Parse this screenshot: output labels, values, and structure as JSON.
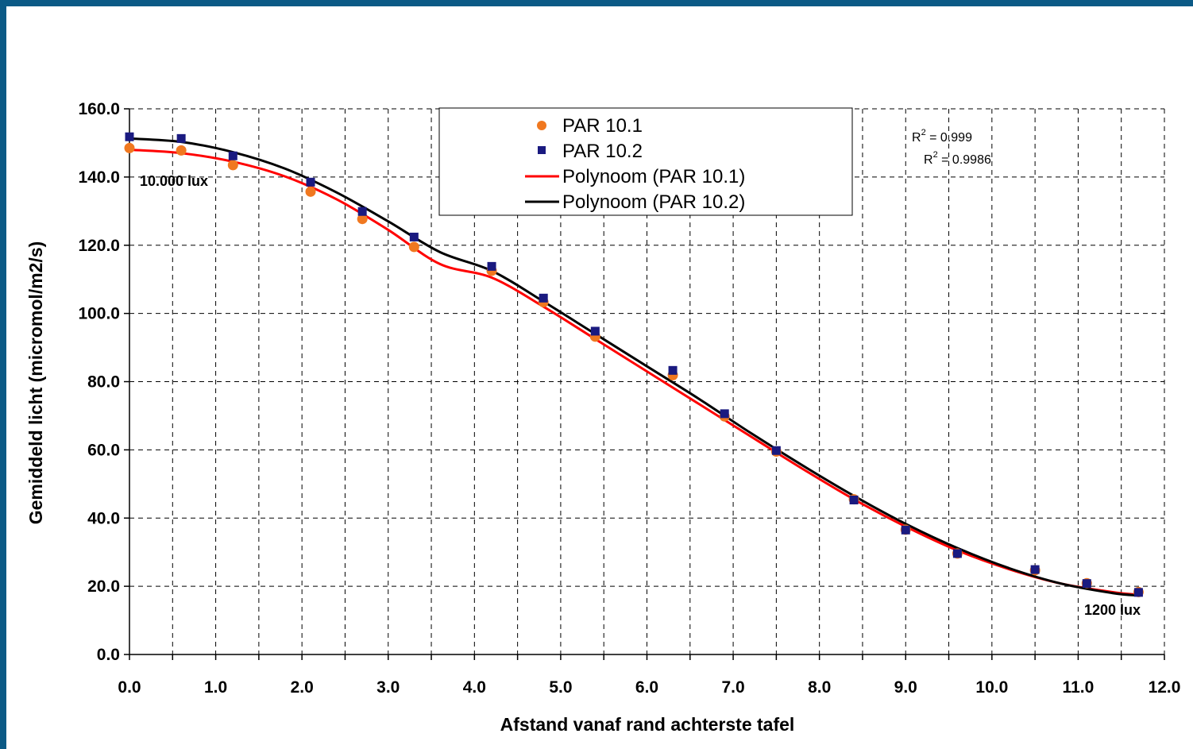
{
  "chart_data": {
    "type": "scatter",
    "title": "",
    "xlabel": "Afstand vanaf rand achterste tafel",
    "ylabel": "Gemiddeld licht (micromol/m2/s)",
    "xlim": [
      0,
      12
    ],
    "ylim": [
      0,
      160
    ],
    "x_tick_labels": [
      "0.0",
      "1.0",
      "2.0",
      "3.0",
      "4.0",
      "5.0",
      "6.0",
      "7.0",
      "8.0",
      "9.0",
      "10.0",
      "11.0",
      "12.0"
    ],
    "y_tick_labels": [
      "0.0",
      "20.0",
      "40.0",
      "60.0",
      "80.0",
      "100.0",
      "120.0",
      "140.0",
      "160.0"
    ],
    "grid": true,
    "legend_position": "top-center",
    "series": [
      {
        "name": "PAR 10.1",
        "marker": "circle",
        "color": "#f07820",
        "x": [
          0.0,
          0.6,
          1.2,
          2.1,
          2.7,
          3.3,
          4.2,
          4.8,
          5.4,
          6.3,
          6.9,
          7.5,
          8.4,
          9.0,
          9.6,
          10.5,
          11.1,
          11.7
        ],
        "y": [
          148.5,
          147.8,
          143.5,
          135.7,
          127.7,
          119.5,
          112.5,
          103.3,
          93.2,
          81.9,
          69.8,
          59.5,
          45.5,
          36.6,
          29.6,
          24.7,
          20.9,
          18.3
        ]
      },
      {
        "name": "PAR 10.2",
        "marker": "square",
        "color": "#1a1a80",
        "x": [
          0.0,
          0.6,
          1.2,
          2.1,
          2.7,
          3.3,
          4.2,
          4.8,
          5.4,
          6.3,
          6.9,
          7.5,
          8.4,
          9.0,
          9.6,
          10.5,
          11.1,
          11.7
        ],
        "y": [
          151.8,
          151.3,
          146.2,
          138.5,
          129.9,
          122.4,
          113.8,
          104.5,
          94.8,
          83.3,
          70.6,
          59.8,
          45.3,
          36.5,
          29.6,
          24.9,
          20.8,
          18.2
        ]
      }
    ],
    "trendlines": [
      {
        "name": "Polynoom (PAR 10.1)",
        "color": "#ff0000",
        "x": [
          0.0,
          0.6,
          1.2,
          1.8,
          2.4,
          3.0,
          3.6,
          4.2,
          4.8,
          5.4,
          6.0,
          6.6,
          7.2,
          7.8,
          8.4,
          9.0,
          9.6,
          10.2,
          10.8,
          11.4,
          11.7
        ],
        "y": [
          148.0,
          147.0,
          144.5,
          140.2,
          133.5,
          124.5,
          114.5,
          110.5,
          102.0,
          92.5,
          83.0,
          73.5,
          64.0,
          54.5,
          45.5,
          37.5,
          30.5,
          25.0,
          20.8,
          18.3,
          17.5
        ]
      },
      {
        "name": "Polynoom (PAR 10.2)",
        "color": "#000000",
        "x": [
          0.0,
          0.6,
          1.2,
          1.8,
          2.4,
          3.0,
          3.6,
          4.2,
          4.8,
          5.4,
          6.0,
          6.6,
          7.2,
          7.8,
          8.4,
          9.0,
          9.6,
          10.2,
          10.8,
          11.4,
          11.7
        ],
        "y": [
          151.3,
          150.3,
          147.3,
          142.5,
          135.5,
          127.0,
          118.0,
          112.5,
          103.5,
          94.0,
          84.5,
          75.0,
          65.0,
          55.5,
          46.5,
          38.3,
          31.2,
          25.3,
          20.8,
          18.0,
          17.3
        ]
      }
    ],
    "r_squared_labels": [
      "0.999",
      "0.9986"
    ],
    "annotations": [
      "10.000 lux",
      "1200 lux"
    ]
  }
}
